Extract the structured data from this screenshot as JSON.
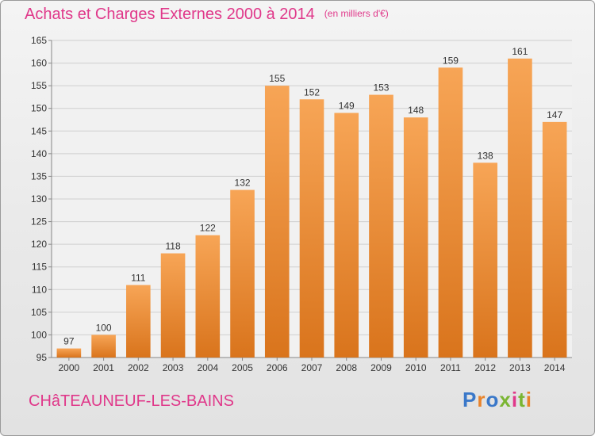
{
  "header": {
    "title": "Achats et Charges Externes 2000 à 2014",
    "unit": "(en milliers d'€)"
  },
  "footer": {
    "commune": "CHâTEAUNEUF-LES-BAINS",
    "logo": "Proxiti"
  },
  "colors": {
    "accent": "#e0388a",
    "bar_top": "#f7a556",
    "bar_bottom": "#d9741c"
  },
  "chart_data": {
    "type": "bar",
    "categories": [
      "2000",
      "2001",
      "2002",
      "2003",
      "2004",
      "2005",
      "2006",
      "2007",
      "2008",
      "2009",
      "2010",
      "2011",
      "2012",
      "2013",
      "2014"
    ],
    "values": [
      97,
      100,
      111,
      118,
      122,
      132,
      155,
      152,
      149,
      153,
      148,
      159,
      138,
      161,
      147
    ],
    "ylim": [
      95,
      165
    ],
    "yticks": [
      95,
      100,
      105,
      110,
      115,
      120,
      125,
      130,
      135,
      140,
      145,
      150,
      155,
      160,
      165
    ],
    "grid": true
  }
}
